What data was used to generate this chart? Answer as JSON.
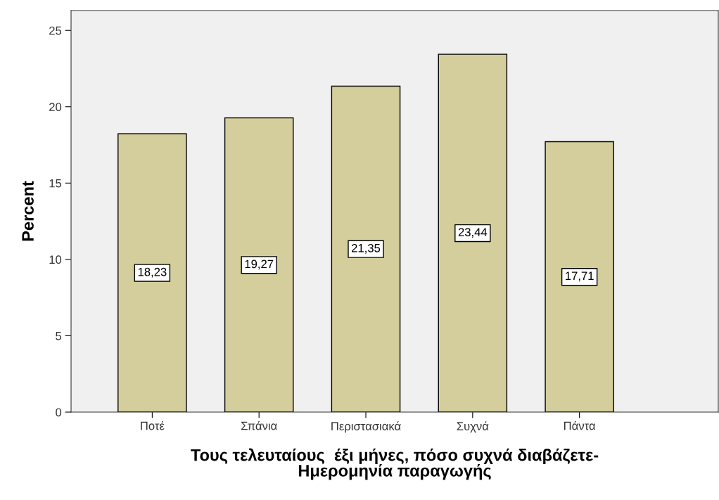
{
  "chart_data": {
    "type": "bar",
    "xlabel": "Τους τελευταίους  έξι μήνες, πόσο συχνά διαβάζετε-\nΗμερομηνία παραγωγής",
    "ylabel": "Percent",
    "categories": [
      "Ποτέ",
      "Σπάνια",
      "Περιστασιακά",
      "Συχνά",
      "Πάντα"
    ],
    "values": [
      18.23,
      19.27,
      21.35,
      23.44,
      17.71
    ],
    "value_labels": [
      "18,23",
      "19,27",
      "21,35",
      "23,44",
      "17,71"
    ],
    "color": "#d3ce9c",
    "ylim": [
      0,
      26.3
    ],
    "yticks": [
      0,
      5,
      10,
      15,
      20,
      25
    ],
    "grid": false
  }
}
